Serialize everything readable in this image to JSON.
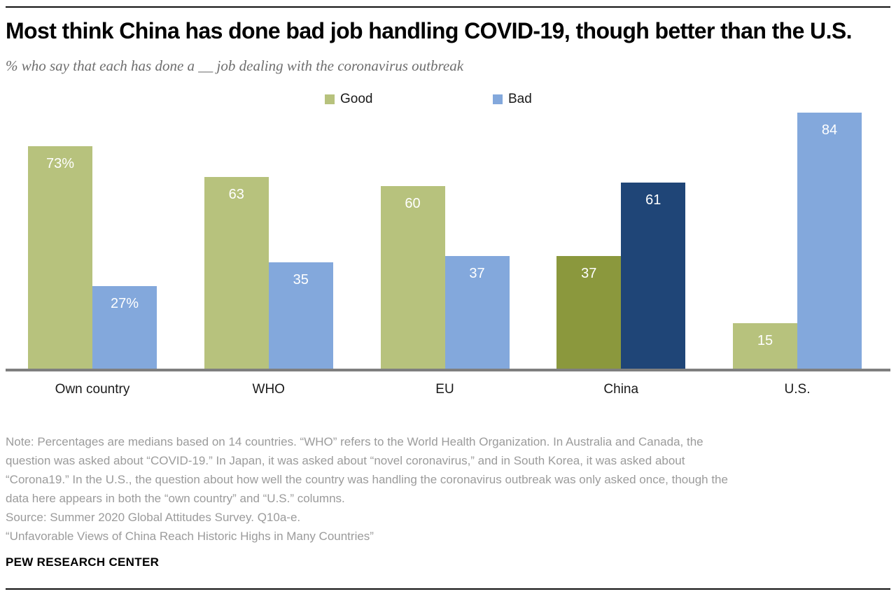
{
  "header": {
    "title": "Most think China has done bad job handling COVID-19, though better than the U.S.",
    "subtitle": "% who say that each has done a __ job dealing with the coronavirus outbreak"
  },
  "legend": [
    {
      "label": "Good",
      "color": "#b7c27d"
    },
    {
      "label": "Bad",
      "color": "#83a8dc"
    }
  ],
  "chart_data": {
    "type": "bar",
    "title": "Most think China has done bad job handling COVID-19, though better than the U.S.",
    "subtitle": "% who say that each has done a __ job dealing with the coronavirus outbreak",
    "categories": [
      "Own country",
      "WHO",
      "EU",
      "China",
      "U.S."
    ],
    "series": [
      {
        "name": "Good",
        "values": [
          73,
          63,
          60,
          37,
          15
        ],
        "labels": [
          "73%",
          "63",
          "60",
          "37",
          "15"
        ],
        "colors": [
          "#b7c27d",
          "#b7c27d",
          "#b7c27d",
          "#8b983d",
          "#b7c27d"
        ]
      },
      {
        "name": "Bad",
        "values": [
          27,
          35,
          37,
          61,
          84
        ],
        "labels": [
          "27%",
          "35",
          "37",
          "61",
          "84"
        ],
        "colors": [
          "#83a8dc",
          "#83a8dc",
          "#83a8dc",
          "#1f4577",
          "#83a8dc"
        ]
      }
    ],
    "xlabel": "",
    "ylabel": "",
    "ylim": [
      0,
      100
    ],
    "grid": false,
    "legend_position": "top",
    "value_labels": "inside-top",
    "highlight_category": "China",
    "axis_line_color": "#7f7f7f"
  },
  "notes": {
    "lines": [
      "Note: Percentages are medians based on 14 countries. “WHO” refers to the World Health Organization. In Australia and Canada, the",
      "question was asked about “COVID-19.” In Japan, it was asked about “novel coronavirus,” and in South Korea, it was asked about",
      "“Corona19.” In the U.S., the question about how well the country was handling the coronavirus outbreak was only asked once, though the",
      "data here appears in both the “own country” and “U.S.” columns.",
      "Source: Summer 2020 Global Attitudes Survey. Q10a-e.",
      "“Unfavorable Views of China Reach Historic Highs in Many Countries”"
    ]
  },
  "footer": {
    "brand": "PEW RESEARCH CENTER"
  }
}
